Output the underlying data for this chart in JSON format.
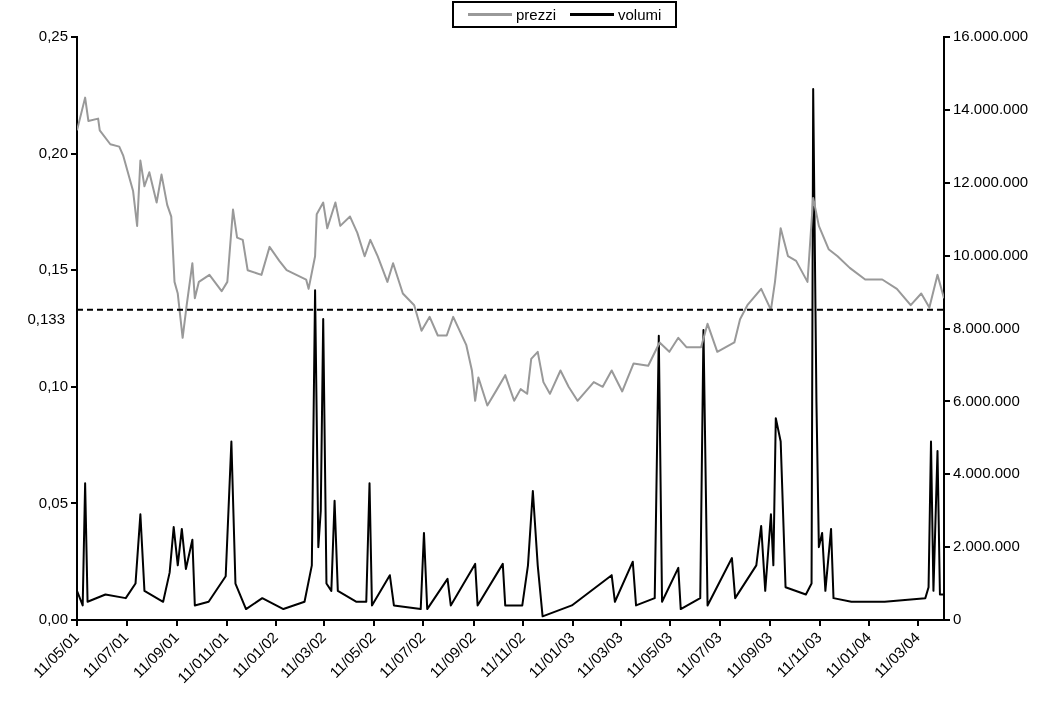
{
  "chart_data": {
    "type": "line",
    "xlim": [
      "2001-05-11",
      "2004-04-12"
    ],
    "xticks": [
      {
        "value": "2001-05-11",
        "label": "11/05/01"
      },
      {
        "value": "2001-07-11",
        "label": "11/07/01"
      },
      {
        "value": "2001-09-11",
        "label": "11/09/01"
      },
      {
        "value": "2001-11-11",
        "label": "11/011/01"
      },
      {
        "value": "2002-01-11",
        "label": "11/01/02"
      },
      {
        "value": "2002-03-11",
        "label": "11/03/02"
      },
      {
        "value": "2002-05-11",
        "label": "11/05/02"
      },
      {
        "value": "2002-07-11",
        "label": "11/07/02"
      },
      {
        "value": "2002-09-11",
        "label": "11/09/02"
      },
      {
        "value": "2002-11-11",
        "label": "11/11/02"
      },
      {
        "value": "2003-01-11",
        "label": "11/01/03"
      },
      {
        "value": "2003-03-11",
        "label": "11/03/03"
      },
      {
        "value": "2003-05-11",
        "label": "11/05/03"
      },
      {
        "value": "2003-07-11",
        "label": "11/07/03"
      },
      {
        "value": "2003-09-11",
        "label": "11/09/03"
      },
      {
        "value": "2003-11-11",
        "label": "11/11/03"
      },
      {
        "value": "2004-01-11",
        "label": "11/01/04"
      },
      {
        "value": "2004-03-11",
        "label": "11/03/04"
      }
    ],
    "ylim": [
      0,
      0.25
    ],
    "yticks": [
      {
        "value": 0,
        "label": "0,00"
      },
      {
        "value": 0.05,
        "label": "0,05"
      },
      {
        "value": 0.1,
        "label": "0,10"
      },
      {
        "value": 0.15,
        "label": "0,15"
      },
      {
        "value": 0.2,
        "label": "0,20"
      },
      {
        "value": 0.25,
        "label": "0,25"
      }
    ],
    "y2lim": [
      0,
      16000000
    ],
    "y2ticks": [
      0,
      {
        "value": 2000000,
        "label": "2.000.000"
      },
      {
        "value": 4000000,
        "label": "4.000.000"
      },
      {
        "value": 6000000,
        "label": "6.000.000"
      },
      {
        "value": 8000000,
        "label": "8.000.000"
      },
      {
        "value": 10000000,
        "label": "10.000.000"
      },
      {
        "value": 12000000,
        "label": "12.000.000"
      },
      {
        "value": 14000000,
        "label": "14.000.000"
      },
      {
        "value": 16000000,
        "label": "16.000.000"
      }
    ],
    "legend": "top",
    "marker": "none",
    "ref_lines": [
      {
        "axis": "y",
        "value": 0.133,
        "label": "0,133",
        "color": "#000000",
        "line_style": "dashed"
      }
    ],
    "series": [
      {
        "name": "prezzi",
        "color": "#999999",
        "x": [
          "2001-05-11",
          "2001-05-21",
          "2001-05-25",
          "2001-06-06",
          "2001-06-08",
          "2001-06-21",
          "2001-07-02",
          "2001-07-07",
          "2001-07-19",
          "2001-07-24",
          "2001-07-28",
          "2001-08-02",
          "2001-08-08",
          "2001-08-17",
          "2001-08-23",
          "2001-08-30",
          "2001-09-04",
          "2001-09-08",
          "2001-09-12",
          "2001-09-18",
          "2001-09-23",
          "2001-09-30",
          "2001-10-03",
          "2001-10-08",
          "2001-10-21",
          "2001-11-05",
          "2001-11-12",
          "2001-11-19",
          "2001-11-24",
          "2001-12-01",
          "2001-12-07",
          "2001-12-24",
          "2002-01-03",
          "2002-01-15",
          "2002-01-24",
          "2002-02-17",
          "2002-02-20",
          "2002-02-28",
          "2002-03-02",
          "2002-03-10",
          "2002-03-15",
          "2002-03-25",
          "2002-03-31",
          "2002-04-12",
          "2002-04-21",
          "2002-04-30",
          "2002-05-07",
          "2002-05-16",
          "2002-05-28",
          "2002-06-04",
          "2002-06-16",
          "2002-06-30",
          "2002-07-09",
          "2002-07-19",
          "2002-07-29",
          "2002-08-09",
          "2002-08-17",
          "2002-09-02",
          "2002-09-09",
          "2002-09-13",
          "2002-09-17",
          "2002-09-28",
          "2002-10-10",
          "2002-10-20",
          "2002-10-31",
          "2002-11-08",
          "2002-11-16",
          "2002-11-21",
          "2002-11-29",
          "2002-12-06",
          "2002-12-14",
          "2002-12-27",
          "2003-01-06",
          "2003-01-17",
          "2003-02-06",
          "2003-02-17",
          "2003-02-28",
          "2003-03-13",
          "2003-03-27",
          "2003-04-14",
          "2003-04-28",
          "2003-05-10",
          "2003-05-21",
          "2003-05-31",
          "2003-06-18",
          "2003-06-26",
          "2003-07-08",
          "2003-07-29",
          "2003-08-05",
          "2003-08-14",
          "2003-08-31",
          "2003-09-12",
          "2003-09-17",
          "2003-09-24",
          "2003-10-03",
          "2003-10-13",
          "2003-10-27",
          "2003-11-03",
          "2003-11-10",
          "2003-11-22",
          "2003-12-03",
          "2003-12-18",
          "2004-01-06",
          "2004-01-27",
          "2004-02-14",
          "2004-03-02",
          "2004-03-15",
          "2004-03-25",
          "2004-04-04",
          "2004-04-12"
        ],
        "values": [
          0.21,
          0.224,
          0.214,
          0.215,
          0.21,
          0.204,
          0.203,
          0.199,
          0.184,
          0.169,
          0.197,
          0.186,
          0.192,
          0.179,
          0.191,
          0.178,
          0.173,
          0.145,
          0.14,
          0.121,
          0.135,
          0.153,
          0.138,
          0.145,
          0.148,
          0.141,
          0.145,
          0.176,
          0.164,
          0.163,
          0.15,
          0.148,
          0.16,
          0.154,
          0.15,
          0.146,
          0.142,
          0.156,
          0.174,
          0.179,
          0.168,
          0.179,
          0.169,
          0.173,
          0.166,
          0.156,
          0.163,
          0.156,
          0.145,
          0.153,
          0.14,
          0.135,
          0.124,
          0.13,
          0.122,
          0.122,
          0.13,
          0.118,
          0.107,
          0.094,
          0.104,
          0.092,
          0.099,
          0.105,
          0.094,
          0.099,
          0.097,
          0.112,
          0.115,
          0.102,
          0.097,
          0.107,
          0.1,
          0.094,
          0.102,
          0.1,
          0.107,
          0.098,
          0.11,
          0.109,
          0.119,
          0.115,
          0.121,
          0.117,
          0.117,
          0.127,
          0.115,
          0.119,
          0.129,
          0.135,
          0.142,
          0.133,
          0.145,
          0.168,
          0.156,
          0.154,
          0.145,
          0.181,
          0.169,
          0.159,
          0.156,
          0.151,
          0.146,
          0.146,
          0.142,
          0.135,
          0.14,
          0.134,
          0.148,
          0.138
        ]
      },
      {
        "name": "volumi",
        "color": "#000000",
        "axis": "y2",
        "x": [
          "2001-05-11",
          "2001-05-18",
          "2001-05-21",
          "2001-05-24",
          "2001-06-15",
          "2001-07-10",
          "2001-07-22",
          "2001-07-28",
          "2001-08-02",
          "2001-08-25",
          "2001-09-02",
          "2001-09-07",
          "2001-09-12",
          "2001-09-17",
          "2001-09-22",
          "2001-09-30",
          "2001-10-03",
          "2001-10-20",
          "2001-11-10",
          "2001-11-17",
          "2001-11-22",
          "2001-12-05",
          "2001-12-25",
          "2002-01-20",
          "2002-02-15",
          "2002-02-24",
          "2002-02-28",
          "2002-03-04",
          "2002-03-07",
          "2002-03-10",
          "2002-03-14",
          "2002-03-20",
          "2002-03-24",
          "2002-03-28",
          "2002-04-20",
          "2002-05-02",
          "2002-05-06",
          "2002-05-09",
          "2002-05-31",
          "2002-06-05",
          "2002-07-08",
          "2002-07-12",
          "2002-07-16",
          "2002-08-10",
          "2002-08-14",
          "2002-09-13",
          "2002-09-16",
          "2002-10-17",
          "2002-10-20",
          "2002-11-10",
          "2002-11-17",
          "2002-11-23",
          "2002-11-29",
          "2002-12-05",
          "2003-01-10",
          "2003-02-28",
          "2003-03-04",
          "2003-03-26",
          "2003-03-30",
          "2003-04-22",
          "2003-04-27",
          "2003-05-01",
          "2003-05-21",
          "2003-05-24",
          "2003-06-17",
          "2003-06-21",
          "2003-06-26",
          "2003-07-26",
          "2003-07-30",
          "2003-08-25",
          "2003-08-31",
          "2003-09-05",
          "2003-09-12",
          "2003-09-15",
          "2003-09-18",
          "2003-09-24",
          "2003-09-30",
          "2003-10-25",
          "2003-11-01",
          "2003-11-03",
          "2003-11-07",
          "2003-11-10",
          "2003-11-14",
          "2003-11-18",
          "2003-11-25",
          "2003-11-28",
          "2003-12-20",
          "2004-01-30",
          "2004-03-20",
          "2004-03-24",
          "2004-03-27",
          "2004-03-30",
          "2004-04-04",
          "2004-04-07",
          "2004-04-12"
        ],
        "values": [
          800000,
          400000,
          3750000,
          500000,
          700000,
          600000,
          1000000,
          2900000,
          800000,
          500000,
          1300000,
          2550000,
          1500000,
          2500000,
          1400000,
          2200000,
          400000,
          500000,
          1200000,
          4900000,
          1000000,
          300000,
          600000,
          300000,
          500000,
          1500000,
          9050000,
          2000000,
          3000000,
          8260000,
          1000000,
          800000,
          3270000,
          800000,
          500000,
          500000,
          3750000,
          400000,
          1230000,
          400000,
          300000,
          2390000,
          300000,
          1130000,
          400000,
          1540000,
          400000,
          1540000,
          400000,
          400000,
          1500000,
          3540000,
          1500000,
          100000,
          400000,
          1230000,
          500000,
          1600000,
          400000,
          600000,
          7800000,
          500000,
          1430000,
          300000,
          600000,
          7960000,
          400000,
          1700000,
          600000,
          1500000,
          2580000,
          800000,
          2900000,
          1500000,
          5540000,
          4900000,
          900000,
          700000,
          1000000,
          14570000,
          6000000,
          2000000,
          2390000,
          800000,
          2500000,
          600000,
          500000,
          500000,
          600000,
          900000,
          4900000,
          800000,
          4640000,
          700000,
          700000
        ]
      }
    ]
  }
}
